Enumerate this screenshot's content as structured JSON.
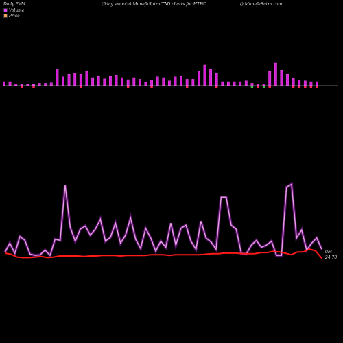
{
  "header": {
    "left": "Daily PVM",
    "center": "(5day smooth) MunafaSutra(TM) charts for HTFC",
    "right": "() MunafaSutra.com"
  },
  "legend": [
    {
      "label": "Volume",
      "color": "#e040fb"
    },
    {
      "label": "Price",
      "color": "#f5a05a"
    }
  ],
  "colors": {
    "volume_up": "#d61fd6",
    "volume_down": "#ff2a5c",
    "volume_small": "#3fbf3f",
    "pvm_line": "#e39ae0",
    "pvm_line_glow": "#a020c0",
    "price_line": "#ff1a1a",
    "baseline": "#cccccc"
  },
  "labels": {
    "volume_scale": "0M",
    "last_price": "24.70"
  },
  "chart_data": [
    {
      "type": "bar",
      "title": "Volume",
      "values": [
        10,
        10,
        4,
        3,
        3,
        3,
        6,
        6,
        7,
        40,
        22,
        28,
        30,
        28,
        35,
        20,
        23,
        17,
        23,
        25,
        20,
        15,
        20,
        16,
        8,
        14,
        22,
        20,
        12,
        22,
        23,
        16,
        16,
        35,
        50,
        40,
        30,
        10,
        10,
        10,
        10,
        12,
        6,
        4,
        4,
        35,
        55,
        38,
        28,
        18,
        14,
        12,
        10,
        10
      ],
      "down_bars": [
        3,
        5,
        13,
        21,
        25,
        31,
        36,
        42,
        43,
        44,
        45,
        49,
        50,
        51,
        52,
        53
      ],
      "green_bars": [
        2,
        4,
        6,
        33,
        38,
        40,
        42,
        44
      ],
      "ylim": [
        0,
        60
      ]
    },
    {
      "type": "line",
      "title": "PVM",
      "values": [
        12,
        35,
        10,
        52,
        42,
        8,
        5,
        6,
        18,
        5,
        45,
        42,
        180,
        75,
        40,
        70,
        78,
        55,
        70,
        95,
        40,
        50,
        85,
        35,
        55,
        98,
        45,
        22,
        72,
        48,
        15,
        40,
        25,
        85,
        30,
        72,
        80,
        40,
        20,
        90,
        48,
        38,
        20,
        150,
        150,
        80,
        70,
        10,
        8,
        30,
        42,
        25,
        30,
        40,
        5,
        5,
        175,
        182,
        48,
        68,
        18,
        35,
        48,
        20
      ],
      "ylim": [
        0,
        200
      ]
    },
    {
      "type": "line",
      "title": "Price",
      "values": [
        25.6,
        25.4,
        24.9,
        24.8,
        24.8,
        24.9,
        25.0,
        24.8,
        24.9,
        25.1,
        25.1,
        25.1,
        25.1,
        25.0,
        25.1,
        25.1,
        25.2,
        25.2,
        25.2,
        25.1,
        25.2,
        25.2,
        25.2,
        25.2,
        25.3,
        25.3,
        25.3,
        25.2,
        25.3,
        25.3,
        25.3,
        25.3,
        25.3,
        25.4,
        25.5,
        25.5,
        25.6,
        25.6,
        25.6,
        25.5,
        25.5,
        25.5,
        25.7,
        25.7,
        25.9,
        25.8,
        25.6,
        25.3,
        25.8,
        25.8,
        26.3,
        26.0,
        24.7
      ],
      "ylim": [
        24,
        34
      ]
    }
  ]
}
